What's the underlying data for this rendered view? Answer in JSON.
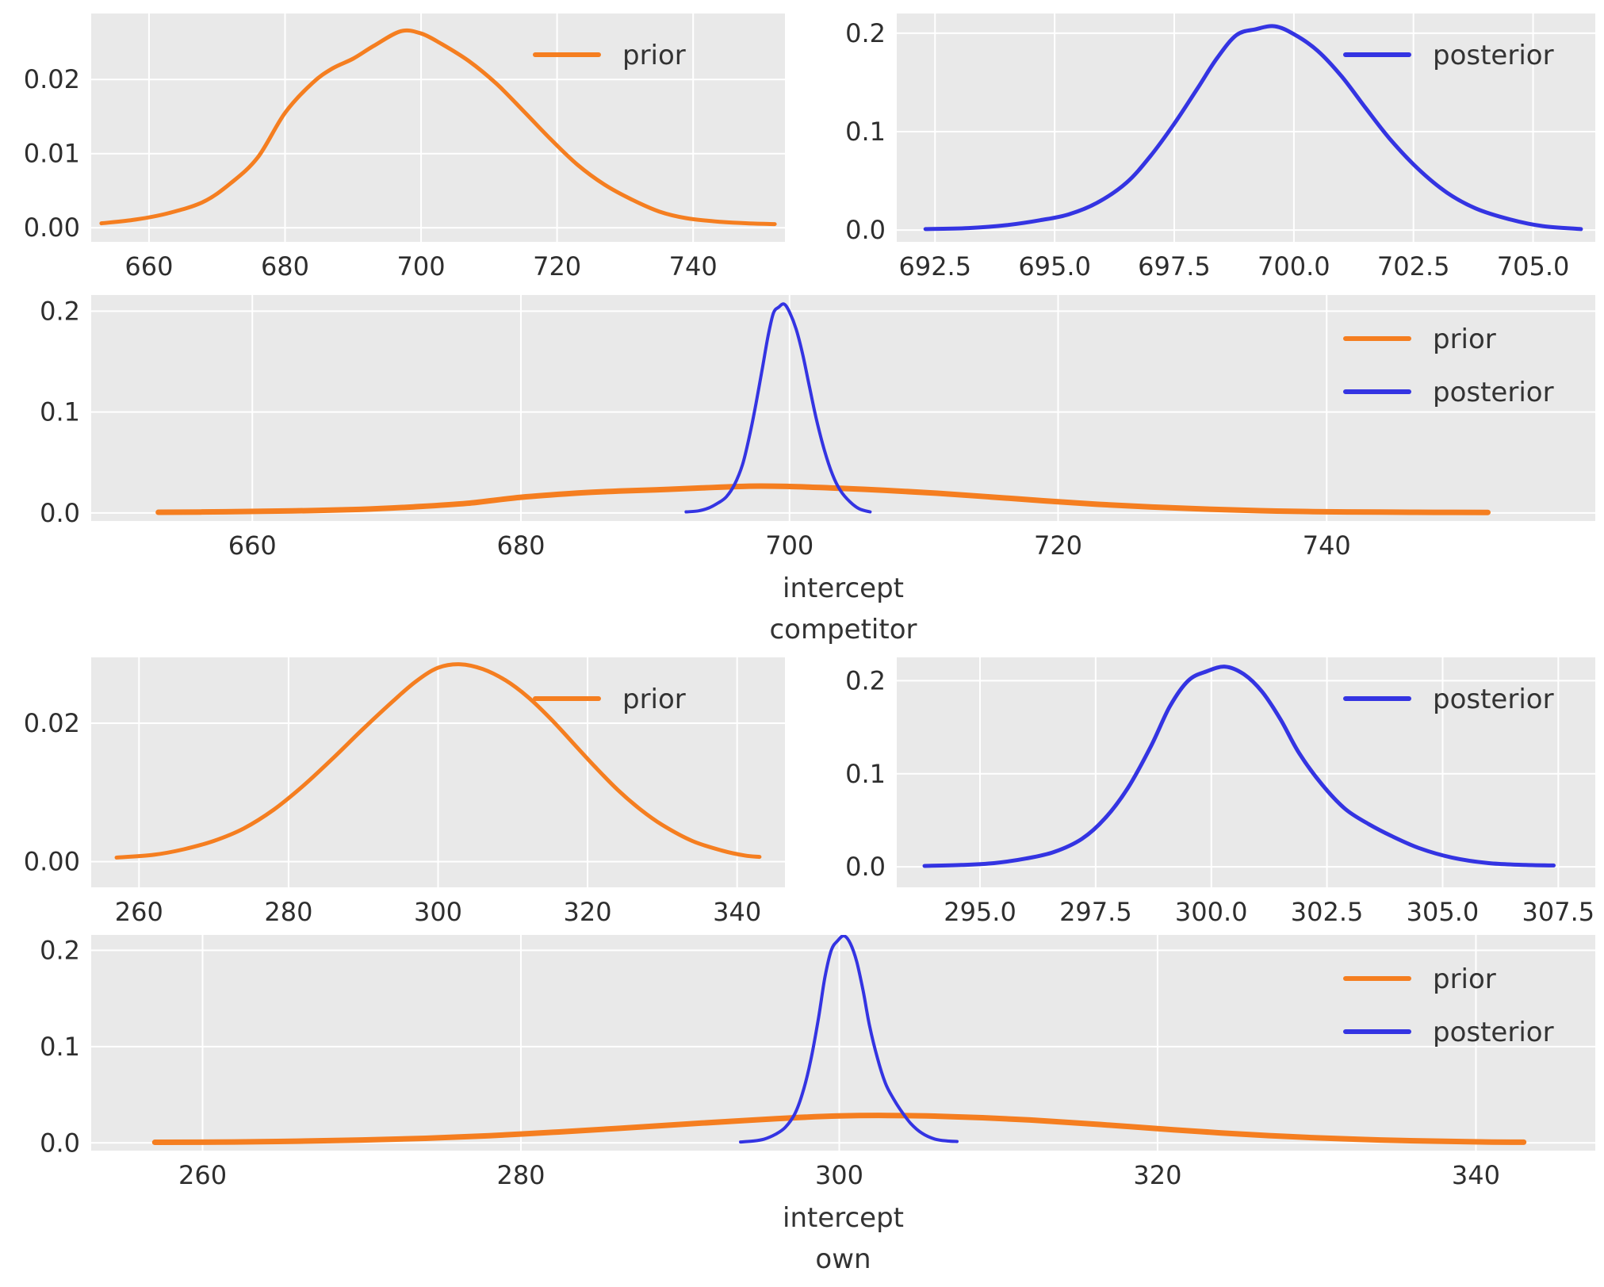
{
  "colors": {
    "prior": "#f57e20",
    "posterior": "#3434e2",
    "plot_bg": "#e9e9e9",
    "grid": "#ffffff",
    "tick_text": "#2e2e2e",
    "label_text": "#333333",
    "figure_bg": "#ffffff"
  },
  "chart_data": {
    "type": "line",
    "style": "kde-density-curves, ggplot-like gray background with white grid, no spines",
    "legend_position": "upper right, no frame",
    "curves": {
      "prior_competitor": {
        "x": [
          653,
          658,
          663,
          668,
          672,
          676,
          680,
          684,
          687,
          690,
          693,
          697,
          700,
          703,
          707,
          711,
          715,
          719,
          723,
          727,
          731,
          735,
          739,
          744,
          748,
          752
        ],
        "y": [
          0.0006,
          0.0011,
          0.002,
          0.0035,
          0.006,
          0.0095,
          0.0155,
          0.0195,
          0.0215,
          0.0228,
          0.0245,
          0.0265,
          0.0262,
          0.0248,
          0.0225,
          0.0195,
          0.0158,
          0.012,
          0.0085,
          0.0058,
          0.0038,
          0.0022,
          0.0013,
          0.0008,
          0.0006,
          0.0005
        ]
      },
      "posterior_competitor": {
        "x": [
          692.3,
          693.2,
          694.0,
          694.7,
          695.3,
          695.9,
          696.5,
          697.0,
          697.5,
          698.0,
          698.4,
          698.8,
          699.2,
          699.6,
          700.0,
          700.5,
          701.0,
          701.5,
          702.0,
          702.6,
          703.2,
          703.8,
          704.5,
          705.2,
          706.0
        ],
        "y": [
          0.001,
          0.002,
          0.005,
          0.01,
          0.016,
          0.028,
          0.048,
          0.075,
          0.108,
          0.145,
          0.175,
          0.198,
          0.204,
          0.207,
          0.199,
          0.182,
          0.156,
          0.124,
          0.093,
          0.062,
          0.038,
          0.022,
          0.011,
          0.004,
          0.001
        ]
      },
      "prior_own": {
        "x": [
          257,
          262,
          266,
          270,
          274,
          278,
          282,
          286,
          290,
          294,
          297,
          300,
          303,
          306,
          309,
          312,
          315,
          318,
          321,
          324,
          327,
          330,
          334,
          338,
          341,
          343
        ],
        "y": [
          0.0006,
          0.001,
          0.0018,
          0.003,
          0.0048,
          0.0075,
          0.011,
          0.015,
          0.0192,
          0.0232,
          0.026,
          0.028,
          0.0285,
          0.0278,
          0.0262,
          0.0238,
          0.0207,
          0.0172,
          0.0137,
          0.0104,
          0.0076,
          0.0053,
          0.003,
          0.0016,
          0.0009,
          0.0007
        ]
      },
      "posterior_own": {
        "x": [
          293.8,
          294.6,
          295.3,
          296.0,
          296.6,
          297.2,
          297.7,
          298.2,
          298.7,
          299.1,
          299.5,
          299.9,
          300.3,
          300.7,
          301.1,
          301.5,
          301.9,
          302.4,
          302.9,
          303.4,
          303.9,
          304.5,
          305.2,
          306.0,
          306.8,
          307.4
        ],
        "y": [
          0.001,
          0.002,
          0.004,
          0.009,
          0.016,
          0.03,
          0.052,
          0.085,
          0.13,
          0.172,
          0.2,
          0.21,
          0.215,
          0.207,
          0.188,
          0.158,
          0.122,
          0.088,
          0.062,
          0.046,
          0.033,
          0.02,
          0.01,
          0.004,
          0.002,
          0.0015
        ]
      }
    },
    "plots": [
      {
        "id": "competitor-prior",
        "xlim": [
          651.5,
          753.5
        ],
        "ylim": [
          -0.0019,
          0.0289
        ],
        "xticks": {
          "values": [
            660,
            680,
            700,
            720,
            740
          ],
          "labels": [
            "660",
            "680",
            "700",
            "720",
            "740"
          ]
        },
        "yticks": {
          "values": [
            0.0,
            0.01,
            0.02
          ],
          "labels": [
            "0.00",
            "0.01",
            "0.02"
          ]
        },
        "legend": [
          {
            "series": "prior",
            "label": "prior"
          }
        ],
        "series": [
          {
            "name": "prior",
            "curve": "prior_competitor",
            "color": "prior"
          }
        ],
        "xlabel": null
      },
      {
        "id": "competitor-posterior",
        "xlim": [
          691.7,
          706.3
        ],
        "ylim": [
          -0.012,
          0.22
        ],
        "xticks": {
          "values": [
            692.5,
            695.0,
            697.5,
            700.0,
            702.5,
            705.0
          ],
          "labels": [
            "692.5",
            "695.0",
            "697.5",
            "700.0",
            "702.5",
            "705.0"
          ]
        },
        "yticks": {
          "values": [
            0.0,
            0.1,
            0.2
          ],
          "labels": [
            "0.0",
            "0.1",
            "0.2"
          ]
        },
        "legend": [
          {
            "series": "posterior",
            "label": "posterior"
          }
        ],
        "series": [
          {
            "name": "posterior",
            "curve": "posterior_competitor",
            "color": "posterior"
          }
        ],
        "xlabel": null
      },
      {
        "id": "competitor-combined",
        "xlim": [
          648,
          760
        ],
        "ylim": [
          -0.008,
          0.216
        ],
        "xticks": {
          "values": [
            660,
            680,
            700,
            720,
            740
          ],
          "labels": [
            "660",
            "680",
            "700",
            "720",
            "740"
          ]
        },
        "yticks": {
          "values": [
            0.0,
            0.1,
            0.2
          ],
          "labels": [
            "0.0",
            "0.1",
            "0.2"
          ]
        },
        "legend": [
          {
            "series": "prior",
            "label": "prior"
          },
          {
            "series": "posterior",
            "label": "posterior"
          }
        ],
        "series": [
          {
            "name": "prior",
            "curve": "prior_competitor",
            "color": "prior"
          },
          {
            "name": "posterior",
            "curve": "posterior_competitor",
            "color": "posterior"
          }
        ],
        "xlabel": [
          "intercept",
          "competitor"
        ]
      },
      {
        "id": "own-prior",
        "xlim": [
          253.6,
          346.4
        ],
        "ylim": [
          -0.0037,
          0.0295
        ],
        "xticks": {
          "values": [
            260,
            280,
            300,
            320,
            340
          ],
          "labels": [
            "260",
            "280",
            "300",
            "320",
            "340"
          ]
        },
        "yticks": {
          "values": [
            0.0,
            0.02
          ],
          "labels": [
            "0.00",
            "0.02"
          ]
        },
        "legend": [
          {
            "series": "prior",
            "label": "prior"
          }
        ],
        "series": [
          {
            "name": "prior",
            "curve": "prior_own",
            "color": "prior"
          }
        ],
        "xlabel": null
      },
      {
        "id": "own-posterior",
        "xlim": [
          293.2,
          308.3
        ],
        "ylim": [
          -0.022,
          0.225
        ],
        "xticks": {
          "values": [
            295.0,
            297.5,
            300.0,
            302.5,
            305.0,
            307.5
          ],
          "labels": [
            "295.0",
            "297.5",
            "300.0",
            "302.5",
            "305.0",
            "307.5"
          ]
        },
        "yticks": {
          "values": [
            0.0,
            0.1,
            0.2
          ],
          "labels": [
            "0.0",
            "0.1",
            "0.2"
          ]
        },
        "legend": [
          {
            "series": "posterior",
            "label": "posterior"
          }
        ],
        "series": [
          {
            "name": "posterior",
            "curve": "posterior_own",
            "color": "posterior"
          }
        ],
        "xlabel": null
      },
      {
        "id": "own-combined",
        "xlim": [
          253,
          347.5
        ],
        "ylim": [
          -0.008,
          0.216
        ],
        "xticks": {
          "values": [
            260,
            280,
            300,
            320,
            340
          ],
          "labels": [
            "260",
            "280",
            "300",
            "320",
            "340"
          ]
        },
        "yticks": {
          "values": [
            0.0,
            0.1,
            0.2
          ],
          "labels": [
            "0.0",
            "0.1",
            "0.2"
          ]
        },
        "legend": [
          {
            "series": "prior",
            "label": "prior"
          },
          {
            "series": "posterior",
            "label": "posterior"
          }
        ],
        "series": [
          {
            "name": "prior",
            "curve": "prior_own",
            "color": "prior"
          },
          {
            "name": "posterior",
            "curve": "posterior_own",
            "color": "posterior"
          }
        ],
        "xlabel": [
          "intercept",
          "own"
        ]
      }
    ]
  }
}
